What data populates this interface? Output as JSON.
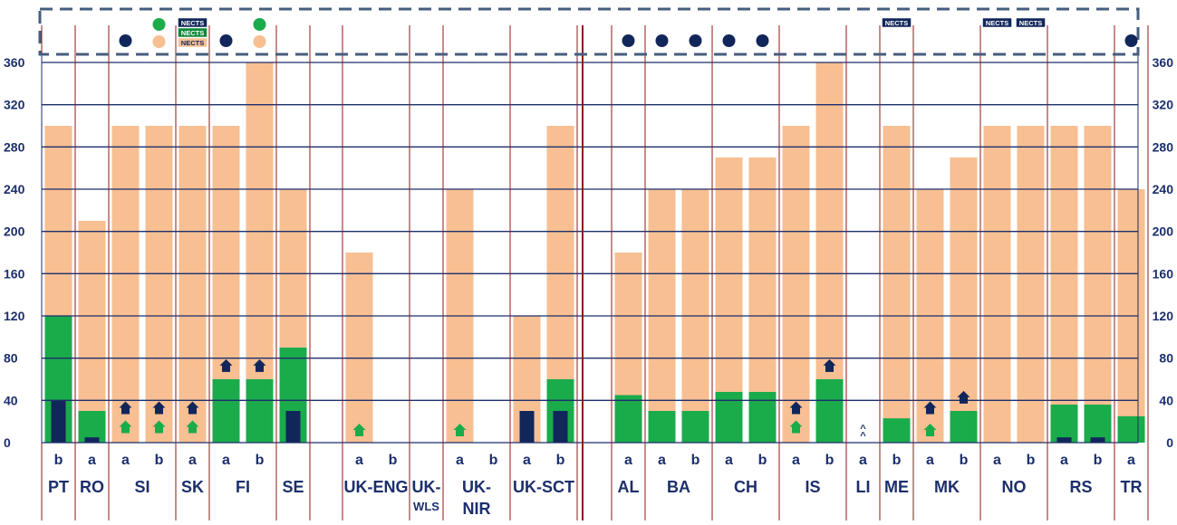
{
  "chart_data": {
    "type": "bar",
    "ylim": [
      0,
      360
    ],
    "yticks": [
      0,
      40,
      80,
      120,
      160,
      200,
      240,
      280,
      320,
      360
    ],
    "colors": {
      "total": "#f7bf92",
      "green": "#1aab4b",
      "navy": "#11265a",
      "grid": "#1c2f6b",
      "divider": "#8b1a1a",
      "text": "#1c2f6b",
      "dash": "#465d7e"
    },
    "legend_badge_text": "NECTS",
    "countries": [
      {
        "code": "PT",
        "bars": [
          {
            "sub": "b",
            "total": 300,
            "green": 120,
            "navy": 40
          }
        ]
      },
      {
        "code": "RO",
        "bars": [
          {
            "sub": "a",
            "total": 210,
            "green": 30,
            "navy": 5
          }
        ]
      },
      {
        "code": "SI",
        "bars": [
          {
            "sub": "a",
            "total": 300,
            "green": 0,
            "navy": 0,
            "markers": [
              {
                "type": "green-arrow",
                "value": 15
              },
              {
                "type": "navy-arrow",
                "value": 33
              }
            ]
          },
          {
            "sub": "b",
            "total": 300,
            "green": 0,
            "navy": 0,
            "markers": [
              {
                "type": "green-arrow",
                "value": 15
              },
              {
                "type": "navy-arrow",
                "value": 33
              }
            ]
          }
        ]
      },
      {
        "code": "SK",
        "bars": [
          {
            "sub": "a",
            "total": 300,
            "green": 0,
            "navy": 0,
            "markers": [
              {
                "type": "green-arrow",
                "value": 15
              },
              {
                "type": "navy-arrow",
                "value": 33
              }
            ]
          }
        ]
      },
      {
        "code": "FI",
        "bars": [
          {
            "sub": "a",
            "total": 300,
            "green": 60,
            "navy": 0,
            "markers": [
              {
                "type": "navy-arrow",
                "value": 73
              }
            ]
          },
          {
            "sub": "b",
            "total": 360,
            "green": 60,
            "navy": 0,
            "markers": [
              {
                "type": "navy-arrow",
                "value": 73
              }
            ]
          }
        ]
      },
      {
        "code": "SE",
        "bars": [
          {
            "sub": "",
            "total": 240,
            "green": 90,
            "navy": 30
          }
        ]
      },
      {
        "code": "UK-ENG",
        "bars": [
          {
            "sub": "a",
            "total": 180,
            "green": 0,
            "navy": 0,
            "markers": [
              {
                "type": "green-arrow",
                "value": 12
              }
            ]
          },
          {
            "sub": "b",
            "total": 0,
            "green": 0,
            "navy": 0
          }
        ]
      },
      {
        "code": "UK-WLS",
        "bars": [
          {
            "sub": "",
            "total": 0,
            "green": 0,
            "navy": 0
          }
        ]
      },
      {
        "code": "UK-NIR",
        "bars": [
          {
            "sub": "a",
            "total": 240,
            "green": 0,
            "navy": 0,
            "markers": [
              {
                "type": "green-arrow",
                "value": 12
              }
            ]
          },
          {
            "sub": "b",
            "total": 0,
            "green": 0,
            "navy": 0
          }
        ]
      },
      {
        "code": "UK-SCT",
        "bars": [
          {
            "sub": "a",
            "total": 120,
            "green": 0,
            "navy": 30
          },
          {
            "sub": "b",
            "total": 300,
            "green": 60,
            "navy": 30
          }
        ]
      },
      {
        "code": "AL",
        "bars": [
          {
            "sub": "a",
            "total": 180,
            "green": 45,
            "navy": 0
          }
        ]
      },
      {
        "code": "BA",
        "bars": [
          {
            "sub": "a",
            "total": 240,
            "green": 30,
            "navy": 0
          },
          {
            "sub": "b",
            "total": 240,
            "green": 30,
            "navy": 0
          }
        ]
      },
      {
        "code": "CH",
        "bars": [
          {
            "sub": "a",
            "total": 270,
            "green": 48,
            "navy": 0
          },
          {
            "sub": "b",
            "total": 270,
            "green": 48,
            "navy": 0
          }
        ]
      },
      {
        "code": "IS",
        "bars": [
          {
            "sub": "a",
            "total": 300,
            "green": 0,
            "navy": 0,
            "markers": [
              {
                "type": "green-arrow",
                "value": 15
              },
              {
                "type": "navy-arrow",
                "value": 33
              }
            ]
          },
          {
            "sub": "b",
            "total": 360,
            "green": 60,
            "navy": 0,
            "markers": [
              {
                "type": "navy-arrow",
                "value": 73
              }
            ]
          }
        ]
      },
      {
        "code": "LI",
        "bars": [
          {
            "sub": "a",
            "total": 0,
            "green": 0,
            "navy": 0,
            "caret": true
          }
        ]
      },
      {
        "code": "ME",
        "bars": [
          {
            "sub": "b",
            "total": 300,
            "green": 23,
            "navy": 0
          }
        ]
      },
      {
        "code": "MK",
        "bars": [
          {
            "sub": "a",
            "total": 240,
            "green": 0,
            "navy": 0,
            "markers": [
              {
                "type": "green-arrow",
                "value": 12
              },
              {
                "type": "navy-arrow",
                "value": 33
              }
            ]
          },
          {
            "sub": "b",
            "total": 270,
            "green": 30,
            "navy": 0,
            "markers": [
              {
                "type": "navy-arrow",
                "value": 43
              }
            ]
          }
        ]
      },
      {
        "code": "NO",
        "bars": [
          {
            "sub": "a",
            "total": 300,
            "green": 0,
            "navy": 0
          },
          {
            "sub": "b",
            "total": 300,
            "green": 0,
            "navy": 0
          }
        ]
      },
      {
        "code": "RS",
        "bars": [
          {
            "sub": "a",
            "total": 300,
            "green": 36,
            "navy": 5
          },
          {
            "sub": "b",
            "total": 300,
            "green": 36,
            "navy": 5
          }
        ]
      },
      {
        "code": "TR",
        "bars": [
          {
            "sub": "a",
            "total": 240,
            "green": 25,
            "navy": 0
          }
        ]
      }
    ],
    "top_markers": [
      {
        "bar": "SI-a",
        "items": [
          "navy-dot"
        ]
      },
      {
        "bar": "SI-b",
        "items": [
          "green-dot",
          "peach-dot"
        ]
      },
      {
        "bar": "SK-a",
        "items": [
          "navy-badge",
          "green-badge",
          "peach-badge"
        ]
      },
      {
        "bar": "FI-a",
        "items": [
          "navy-dot"
        ]
      },
      {
        "bar": "FI-b",
        "items": [
          "green-dot",
          "peach-dot"
        ]
      },
      {
        "bar": "AL-a",
        "items": [
          "navy-dot"
        ]
      },
      {
        "bar": "BA-a",
        "items": [
          "navy-dot"
        ]
      },
      {
        "bar": "BA-b",
        "items": [
          "navy-dot"
        ]
      },
      {
        "bar": "CH-a",
        "items": [
          "navy-dot"
        ]
      },
      {
        "bar": "CH-b",
        "items": [
          "navy-dot"
        ]
      },
      {
        "bar": "ME-b",
        "items": [
          "navy-badge"
        ]
      },
      {
        "bar": "NO-a",
        "items": [
          "navy-badge"
        ]
      },
      {
        "bar": "NO-b",
        "items": [
          "navy-badge"
        ]
      },
      {
        "bar": "TR-a",
        "items": [
          "navy-dot"
        ]
      }
    ]
  }
}
